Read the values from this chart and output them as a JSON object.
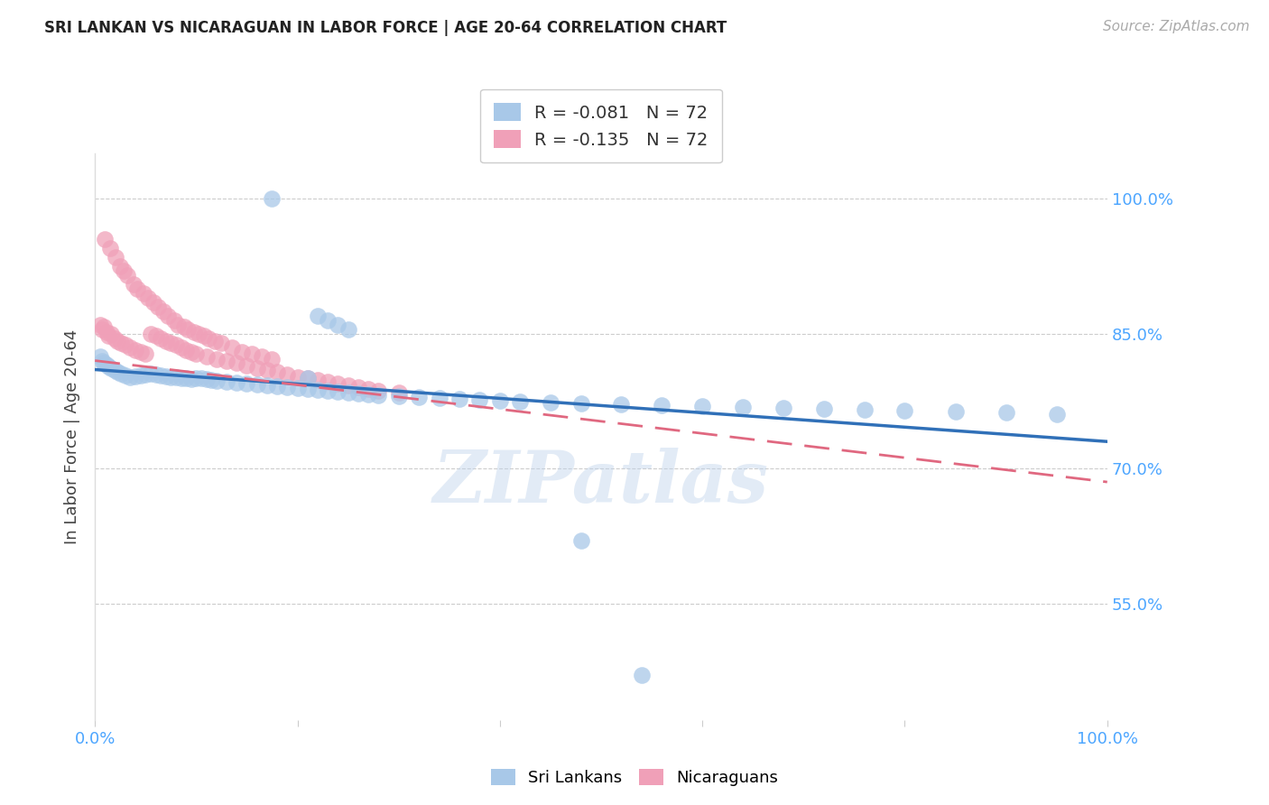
{
  "title": "SRI LANKAN VS NICARAGUAN IN LABOR FORCE | AGE 20-64 CORRELATION CHART",
  "source": "Source: ZipAtlas.com",
  "ylabel": "In Labor Force | Age 20-64",
  "xlim": [
    0.0,
    1.0
  ],
  "ylim": [
    0.42,
    1.05
  ],
  "yticks": [
    0.55,
    0.7,
    0.85,
    1.0
  ],
  "ytick_labels": [
    "55.0%",
    "70.0%",
    "85.0%",
    "100.0%"
  ],
  "xticks": [
    0.0,
    0.2,
    0.4,
    0.6,
    0.8,
    1.0
  ],
  "blue_color": "#a8c8e8",
  "pink_color": "#f0a0b8",
  "trendline_blue": "#3070b8",
  "trendline_pink": "#e06880",
  "legend_R_blue": "-0.081",
  "legend_R_pink": "-0.135",
  "legend_N": "72",
  "sri_trendline_start": 0.81,
  "sri_trendline_end": 0.73,
  "nic_trendline_start": 0.82,
  "nic_trendline_end": 0.685,
  "sri_lankans_x": [
    0.175,
    0.005,
    0.007,
    0.009,
    0.011,
    0.013,
    0.016,
    0.019,
    0.022,
    0.026,
    0.03,
    0.035,
    0.04,
    0.045,
    0.05,
    0.055,
    0.06,
    0.065,
    0.07,
    0.075,
    0.08,
    0.085,
    0.09,
    0.095,
    0.1,
    0.105,
    0.11,
    0.115,
    0.12,
    0.13,
    0.14,
    0.15,
    0.16,
    0.17,
    0.18,
    0.19,
    0.2,
    0.21,
    0.22,
    0.23,
    0.24,
    0.25,
    0.26,
    0.27,
    0.28,
    0.3,
    0.32,
    0.34,
    0.36,
    0.38,
    0.4,
    0.42,
    0.45,
    0.48,
    0.52,
    0.56,
    0.6,
    0.64,
    0.68,
    0.72,
    0.76,
    0.8,
    0.85,
    0.9,
    0.22,
    0.23,
    0.24,
    0.25,
    0.48,
    0.54,
    0.95,
    0.21
  ],
  "sri_lankans_y": [
    1.0,
    0.825,
    0.82,
    0.818,
    0.816,
    0.814,
    0.812,
    0.81,
    0.808,
    0.806,
    0.804,
    0.802,
    0.803,
    0.804,
    0.805,
    0.806,
    0.805,
    0.804,
    0.803,
    0.802,
    0.801,
    0.8,
    0.8,
    0.799,
    0.8,
    0.8,
    0.799,
    0.798,
    0.797,
    0.796,
    0.795,
    0.794,
    0.793,
    0.792,
    0.791,
    0.79,
    0.789,
    0.788,
    0.787,
    0.786,
    0.785,
    0.784,
    0.783,
    0.782,
    0.781,
    0.78,
    0.779,
    0.778,
    0.777,
    0.776,
    0.775,
    0.774,
    0.773,
    0.772,
    0.771,
    0.77,
    0.769,
    0.768,
    0.767,
    0.766,
    0.765,
    0.764,
    0.763,
    0.762,
    0.87,
    0.865,
    0.86,
    0.855,
    0.62,
    0.47,
    0.76,
    0.8
  ],
  "nicaraguans_x": [
    0.005,
    0.007,
    0.009,
    0.011,
    0.013,
    0.016,
    0.019,
    0.022,
    0.026,
    0.03,
    0.035,
    0.04,
    0.045,
    0.05,
    0.055,
    0.06,
    0.065,
    0.07,
    0.075,
    0.08,
    0.085,
    0.09,
    0.095,
    0.1,
    0.11,
    0.12,
    0.13,
    0.14,
    0.15,
    0.16,
    0.17,
    0.18,
    0.19,
    0.2,
    0.21,
    0.22,
    0.23,
    0.24,
    0.25,
    0.26,
    0.27,
    0.28,
    0.3,
    0.01,
    0.015,
    0.02,
    0.025,
    0.028,
    0.032,
    0.038,
    0.042,
    0.048,
    0.052,
    0.058,
    0.062,
    0.068,
    0.072,
    0.078,
    0.082,
    0.088,
    0.092,
    0.098,
    0.102,
    0.108,
    0.112,
    0.118,
    0.125,
    0.135,
    0.145,
    0.155,
    0.165,
    0.175
  ],
  "nicaraguans_y": [
    0.86,
    0.855,
    0.858,
    0.852,
    0.848,
    0.85,
    0.845,
    0.842,
    0.84,
    0.838,
    0.835,
    0.832,
    0.83,
    0.828,
    0.85,
    0.848,
    0.845,
    0.842,
    0.84,
    0.838,
    0.835,
    0.832,
    0.83,
    0.828,
    0.825,
    0.822,
    0.82,
    0.818,
    0.815,
    0.812,
    0.81,
    0.808,
    0.805,
    0.802,
    0.8,
    0.798,
    0.796,
    0.794,
    0.792,
    0.79,
    0.788,
    0.786,
    0.784,
    0.955,
    0.945,
    0.935,
    0.925,
    0.92,
    0.915,
    0.905,
    0.9,
    0.895,
    0.89,
    0.885,
    0.88,
    0.875,
    0.87,
    0.865,
    0.86,
    0.858,
    0.855,
    0.852,
    0.85,
    0.848,
    0.845,
    0.842,
    0.84,
    0.835,
    0.83,
    0.828,
    0.825,
    0.822
  ]
}
